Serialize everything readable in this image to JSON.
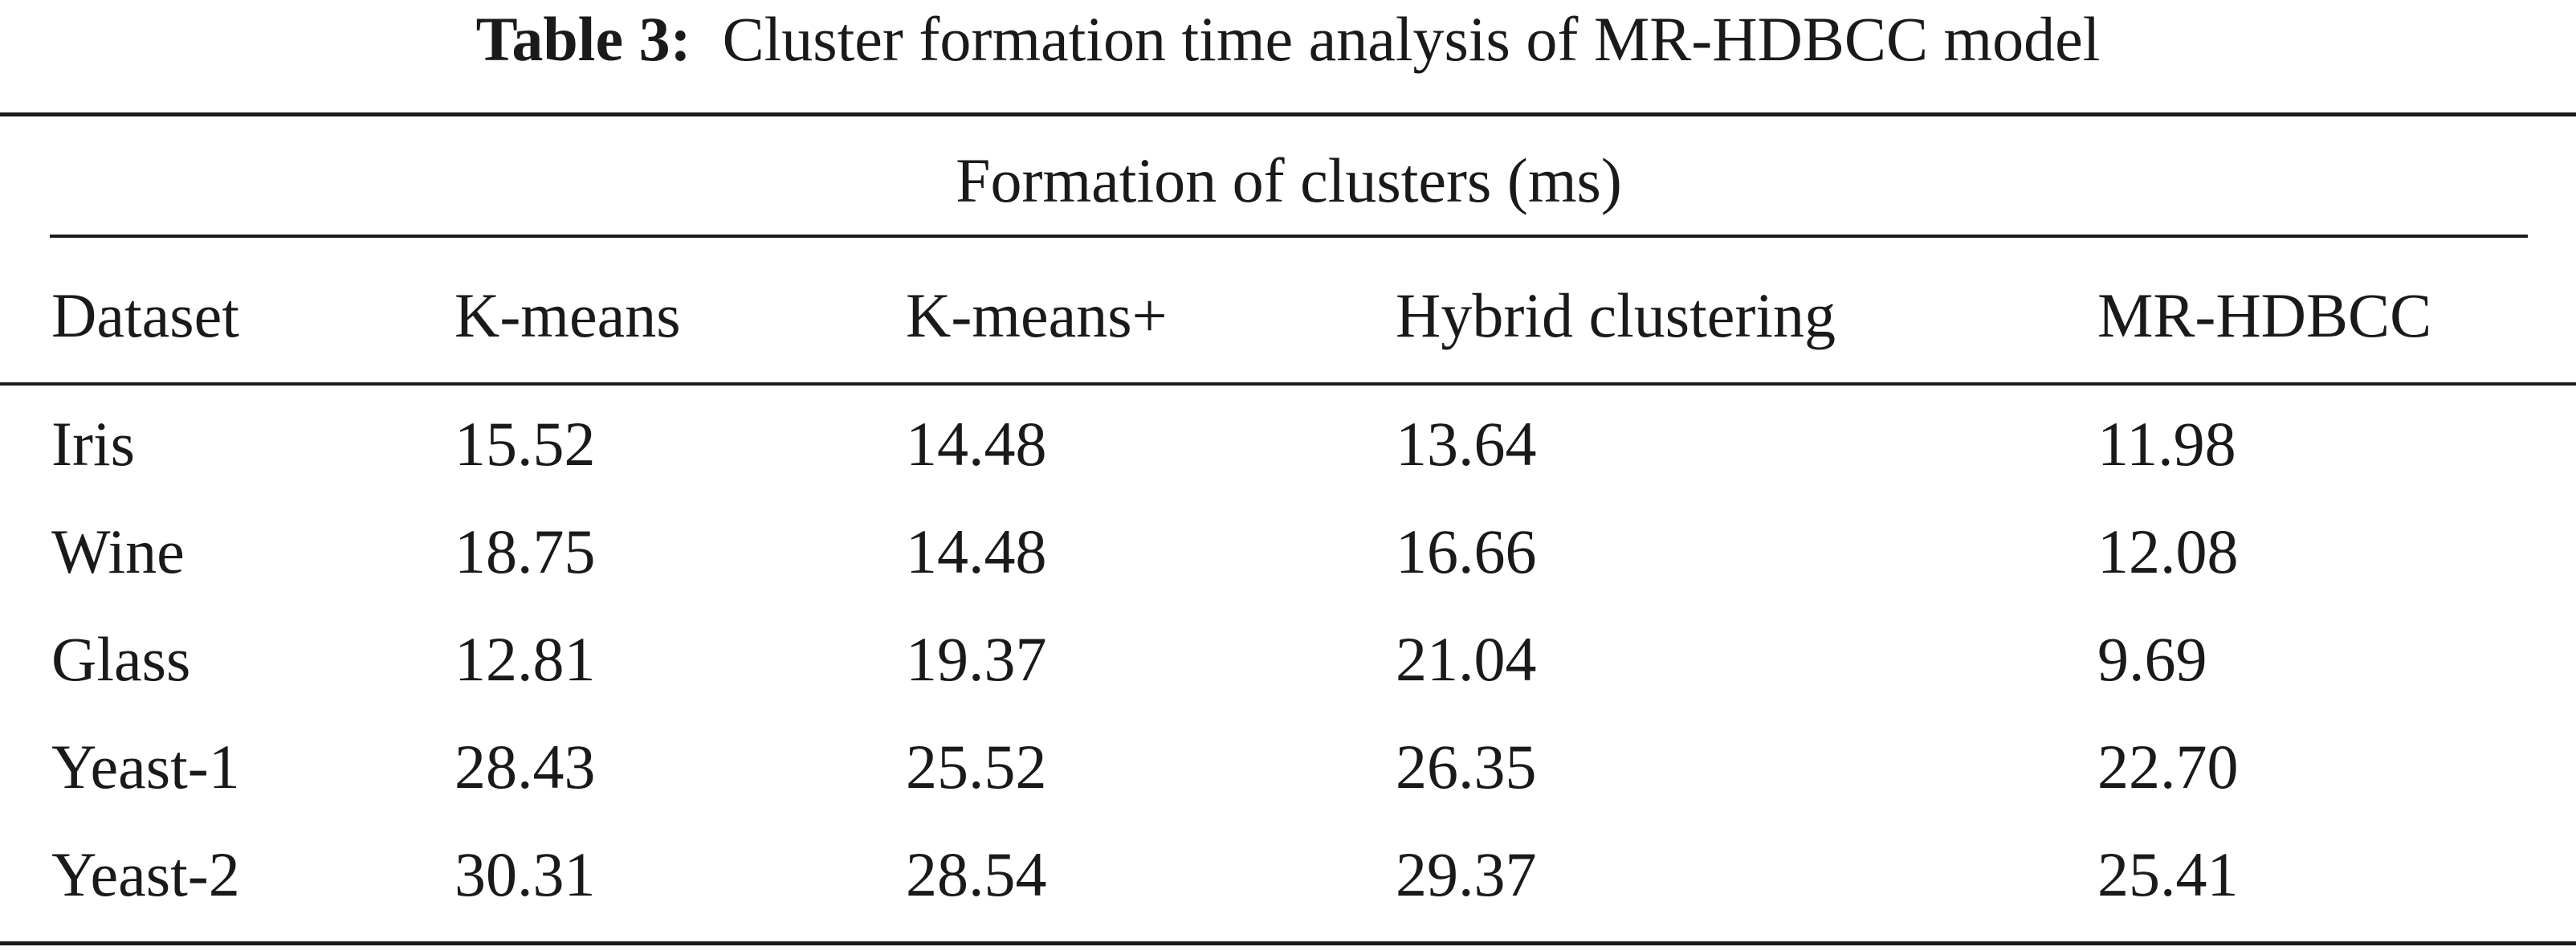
{
  "caption": {
    "label": "Table 3:",
    "text": "Cluster formation time analysis of MR-HDBCC model"
  },
  "group_header": "Formation of clusters (ms)",
  "columns": [
    "Dataset",
    "K-means",
    "K-means+",
    "Hybrid clustering",
    "MR-HDBCC"
  ],
  "rows": [
    [
      "Iris",
      "15.52",
      "14.48",
      "13.64",
      "11.98"
    ],
    [
      "Wine",
      "18.75",
      "14.48",
      "16.66",
      "12.08"
    ],
    [
      "Glass",
      "12.81",
      "19.37",
      "21.04",
      "9.69"
    ],
    [
      "Yeast-1",
      "28.43",
      "25.52",
      "26.35",
      "22.70"
    ],
    [
      "Yeast-2",
      "30.31",
      "28.54",
      "29.37",
      "25.41"
    ]
  ]
}
